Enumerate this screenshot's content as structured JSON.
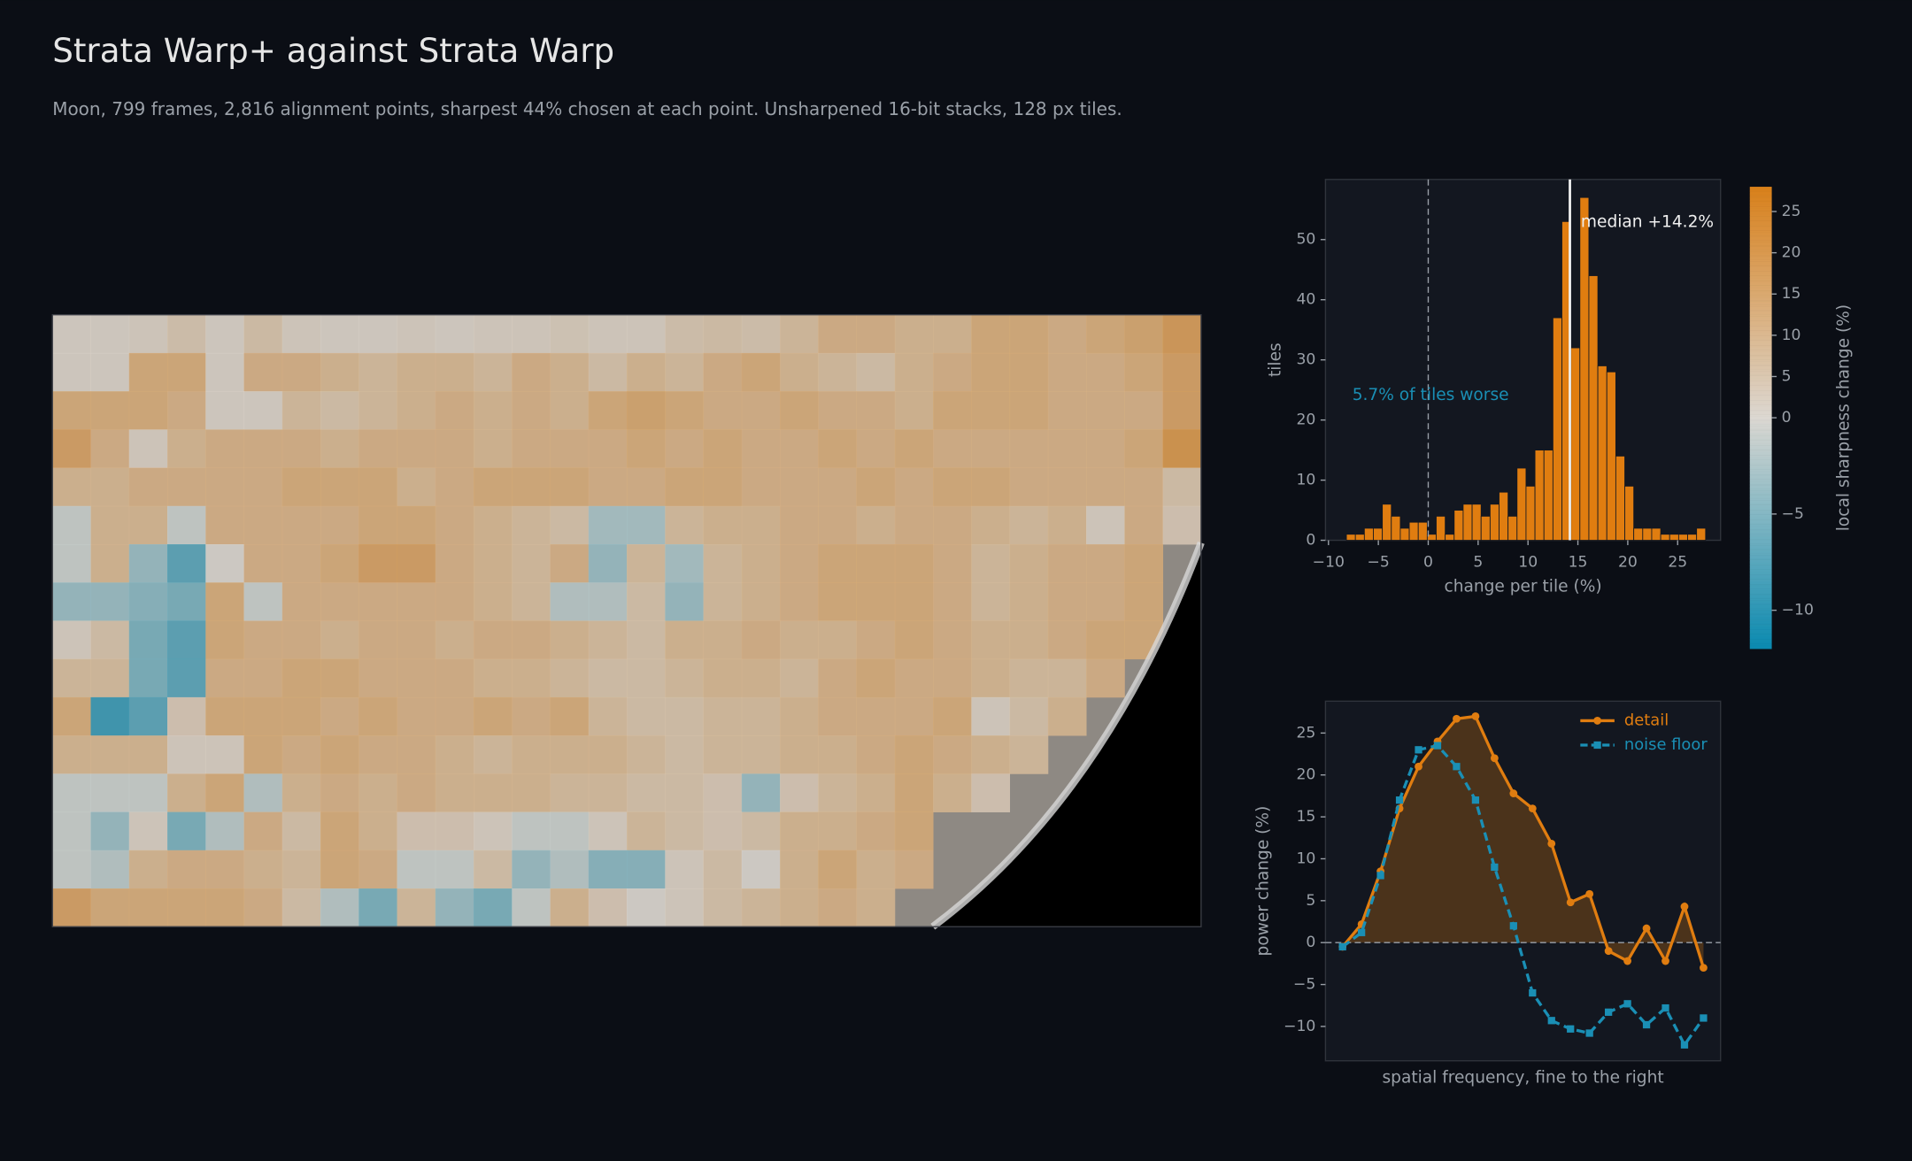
{
  "title": "Strata Warp+ against Strata Warp",
  "subtitle": "Moon, 799 frames, 2,816 alignment points, sharpest 44% chosen at each point. Unsharpened 16-bit stacks, 128 px tiles.",
  "chart_data": [
    {
      "type": "heatmap",
      "values": [
        [
          1,
          1,
          2,
          5,
          1,
          6,
          2,
          1,
          1,
          2,
          1,
          2,
          2,
          3,
          2,
          2,
          5,
          6,
          5,
          8,
          12,
          12,
          10,
          10,
          14,
          14,
          12,
          14,
          16,
          20
        ],
        [
          1,
          1,
          14,
          14,
          1,
          12,
          12,
          10,
          8,
          10,
          10,
          8,
          12,
          10,
          6,
          10,
          8,
          12,
          14,
          10,
          8,
          6,
          10,
          12,
          14,
          14,
          12,
          12,
          14,
          18
        ],
        [
          14,
          14,
          14,
          12,
          1,
          1,
          8,
          6,
          8,
          10,
          12,
          10,
          12,
          10,
          14,
          16,
          14,
          12,
          12,
          14,
          12,
          12,
          10,
          14,
          14,
          14,
          12,
          12,
          12,
          18
        ],
        [
          18,
          12,
          2,
          10,
          12,
          12,
          12,
          10,
          12,
          12,
          12,
          10,
          12,
          12,
          12,
          14,
          12,
          14,
          12,
          12,
          14,
          12,
          14,
          12,
          12,
          12,
          12,
          12,
          14,
          22
        ],
        [
          10,
          10,
          12,
          12,
          12,
          12,
          14,
          14,
          14,
          10,
          12,
          14,
          14,
          14,
          12,
          12,
          14,
          14,
          12,
          12,
          12,
          14,
          12,
          14,
          14,
          12,
          12,
          12,
          12,
          6
        ],
        [
          -1,
          10,
          10,
          -1,
          12,
          12,
          12,
          12,
          14,
          14,
          12,
          10,
          8,
          6,
          -3,
          -3,
          8,
          10,
          10,
          12,
          12,
          10,
          12,
          12,
          10,
          8,
          10,
          2,
          12,
          4
        ],
        [
          -1,
          10,
          -4,
          -8,
          0,
          12,
          12,
          14,
          18,
          18,
          12,
          10,
          8,
          12,
          -4,
          8,
          -3,
          8,
          10,
          12,
          14,
          14,
          14,
          12,
          8,
          10,
          12,
          12,
          14,
          null
        ],
        [
          -4,
          -4,
          -5,
          -6,
          14,
          -1,
          12,
          12,
          12,
          12,
          12,
          10,
          8,
          -2,
          -2,
          6,
          -4,
          8,
          10,
          12,
          14,
          14,
          14,
          12,
          8,
          10,
          12,
          12,
          14,
          null
        ],
        [
          2,
          6,
          -6,
          -8,
          14,
          12,
          12,
          10,
          12,
          12,
          10,
          12,
          12,
          10,
          8,
          6,
          10,
          10,
          12,
          10,
          10,
          12,
          14,
          12,
          10,
          10,
          12,
          14,
          14,
          null
        ],
        [
          8,
          8,
          -6,
          -8,
          12,
          12,
          14,
          14,
          12,
          12,
          12,
          10,
          10,
          8,
          6,
          6,
          8,
          10,
          10,
          8,
          12,
          14,
          12,
          12,
          10,
          8,
          8,
          12,
          null,
          null
        ],
        [
          14,
          -10,
          -8,
          4,
          14,
          14,
          14,
          12,
          14,
          12,
          12,
          14,
          12,
          14,
          8,
          6,
          6,
          8,
          8,
          10,
          12,
          12,
          12,
          14,
          2,
          6,
          10,
          null,
          null,
          null
        ],
        [
          10,
          10,
          10,
          2,
          2,
          14,
          12,
          14,
          12,
          12,
          10,
          8,
          10,
          10,
          10,
          8,
          6,
          8,
          8,
          10,
          10,
          12,
          14,
          12,
          10,
          8,
          null,
          null,
          null,
          null
        ],
        [
          -1,
          -1,
          -1,
          10,
          14,
          -2,
          10,
          12,
          10,
          12,
          10,
          10,
          10,
          8,
          8,
          6,
          6,
          4,
          -4,
          4,
          8,
          10,
          14,
          10,
          4,
          null,
          null,
          null,
          null,
          null
        ],
        [
          -1,
          -4,
          2,
          -6,
          -2,
          12,
          6,
          14,
          10,
          4,
          4,
          2,
          -1,
          -1,
          2,
          8,
          6,
          4,
          6,
          10,
          10,
          12,
          14,
          null,
          null,
          null,
          null,
          null,
          null,
          null
        ],
        [
          -1,
          -2,
          10,
          12,
          12,
          10,
          8,
          14,
          12,
          -1,
          -1,
          6,
          -4,
          -2,
          -5,
          -5,
          2,
          6,
          0,
          10,
          14,
          10,
          12,
          null,
          null,
          null,
          null,
          null,
          null,
          null
        ],
        [
          18,
          14,
          14,
          14,
          14,
          12,
          6,
          -2,
          -6,
          8,
          -4,
          -6,
          -1,
          10,
          4,
          0,
          2,
          6,
          8,
          10,
          12,
          10,
          null,
          null,
          null,
          null,
          null,
          null,
          null,
          null
        ]
      ],
      "clim": [
        -12,
        28
      ],
      "cticks": [
        {
          "value": -10,
          "label": "−10"
        },
        {
          "value": -5,
          "label": "−5"
        },
        0,
        5,
        10,
        15,
        20,
        25
      ],
      "colorbar_label": "local sharpness change (%)",
      "colors": {
        "negative": "#0a8ab0",
        "zero": "#dcd8d2",
        "positive": "#d9801a"
      }
    },
    {
      "type": "histogram",
      "bins": [
        -8.2,
        -7.3,
        -6.4,
        -5.5,
        -4.6,
        -3.7,
        -2.8,
        -1.9,
        -1.0,
        -0.1,
        0.8,
        1.7,
        2.6,
        3.5,
        4.4,
        5.3,
        6.2,
        7.1,
        8.0,
        8.9,
        9.8,
        10.7,
        11.6,
        12.5,
        13.4,
        14.3,
        15.2,
        16.1,
        17.0,
        17.9,
        18.8,
        19.7,
        20.6,
        21.5,
        22.4,
        23.3,
        24.2,
        25.1,
        26.0,
        26.9,
        27.8
      ],
      "values": [
        1,
        1,
        2,
        2,
        6,
        4,
        2,
        3,
        3,
        1,
        4,
        1,
        5,
        6,
        6,
        4,
        6,
        8,
        4,
        12,
        9,
        15,
        15,
        37,
        53,
        32,
        57,
        44,
        29,
        28,
        14,
        9,
        2,
        2,
        2,
        1,
        1,
        1,
        1,
        2
      ],
      "color": "#e07d10",
      "xlim": [
        -10.3,
        29.3
      ],
      "ylim": [
        0,
        60
      ],
      "xticks": [
        {
          "value": -10,
          "label": "−10"
        },
        {
          "value": -5,
          "label": "−5"
        },
        0,
        5,
        10,
        15,
        20,
        25
      ],
      "yticks": [
        0,
        10,
        20,
        30,
        40,
        50
      ],
      "xlabel": "change per tile (%)",
      "ylabel": "tiles",
      "median": 14.2,
      "median_label": "median +14.2%",
      "zero_line": 0,
      "annotation": "5.7% of tiles worse"
    },
    {
      "type": "line",
      "categories": [
        null,
        null,
        null,
        null,
        null,
        null,
        null,
        null,
        null,
        null,
        null,
        null,
        null,
        null,
        null,
        null,
        null,
        null,
        null,
        null
      ],
      "series": [
        {
          "name": "detail",
          "color": "#e07d10",
          "marker": "circle",
          "dashed": false,
          "fill_under": true,
          "values": [
            -0.5,
            2.2,
            8.5,
            16,
            21,
            24,
            26.7,
            27,
            22,
            17.8,
            16,
            11.8,
            4.8,
            5.8,
            -1,
            -2.2,
            1.7,
            -2.2,
            4.3,
            -3
          ]
        },
        {
          "name": "noise floor",
          "color": "#1a8fb5",
          "marker": "square",
          "dashed": true,
          "fill_under": false,
          "values": [
            -0.5,
            1.2,
            8,
            17,
            23,
            23.5,
            21,
            17,
            9,
            2,
            -6,
            -9.3,
            -10.3,
            -10.8,
            -8.3,
            -7.3,
            -9.8,
            -7.8,
            -12.2,
            -9
          ]
        }
      ],
      "ylim": [
        -14.1,
        28.8
      ],
      "yticks": [
        {
          "value": -10,
          "label": "−10"
        },
        {
          "value": -5,
          "label": "−5"
        },
        0,
        5,
        10,
        15,
        20,
        25
      ],
      "xlabel": "spatial frequency, fine to the right",
      "ylabel": "power change (%)",
      "legend": "upper right",
      "zero_line": 0
    }
  ]
}
